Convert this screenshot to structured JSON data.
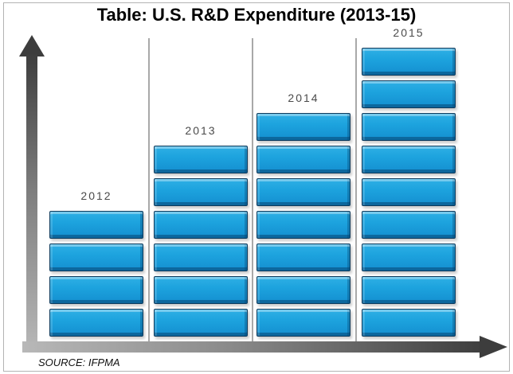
{
  "title": "Table: U.S. R&D Expenditure (2013-15)",
  "source_note": "SOURCE: IFPMA",
  "chart_data": {
    "type": "bar",
    "subtype": "pictograph-block-bar",
    "title": "Table: U.S. R&D Expenditure (2013-15)",
    "categories": [
      "2012",
      "2013",
      "2014",
      "2015"
    ],
    "values": [
      4,
      6,
      7,
      9
    ],
    "values_unit": "stacked blocks (relative expenditure, no numeric scale shown)",
    "xlabel": "",
    "ylabel": "",
    "axis_style": "unlabeled gradient arrows (up and right), no ticks, no gridlines",
    "legend": "none",
    "annotations": [
      "SOURCE: IFPMA"
    ]
  },
  "colors": {
    "block_face": "#1da3de",
    "block_face_bottom": "#148fd0",
    "block_highlight": "#5ec9f2",
    "block_bevel_dark": "#0b5f9a",
    "block_border": "#0d3a5c",
    "axis_dark": "#3d3d3d",
    "axis_light": "#b8b8b8",
    "separator": "#a9a9a9",
    "frame_border": "#b3b3b3",
    "year_label": "#4a4a4a",
    "title_color": "#000000",
    "background": "#ffffff"
  }
}
